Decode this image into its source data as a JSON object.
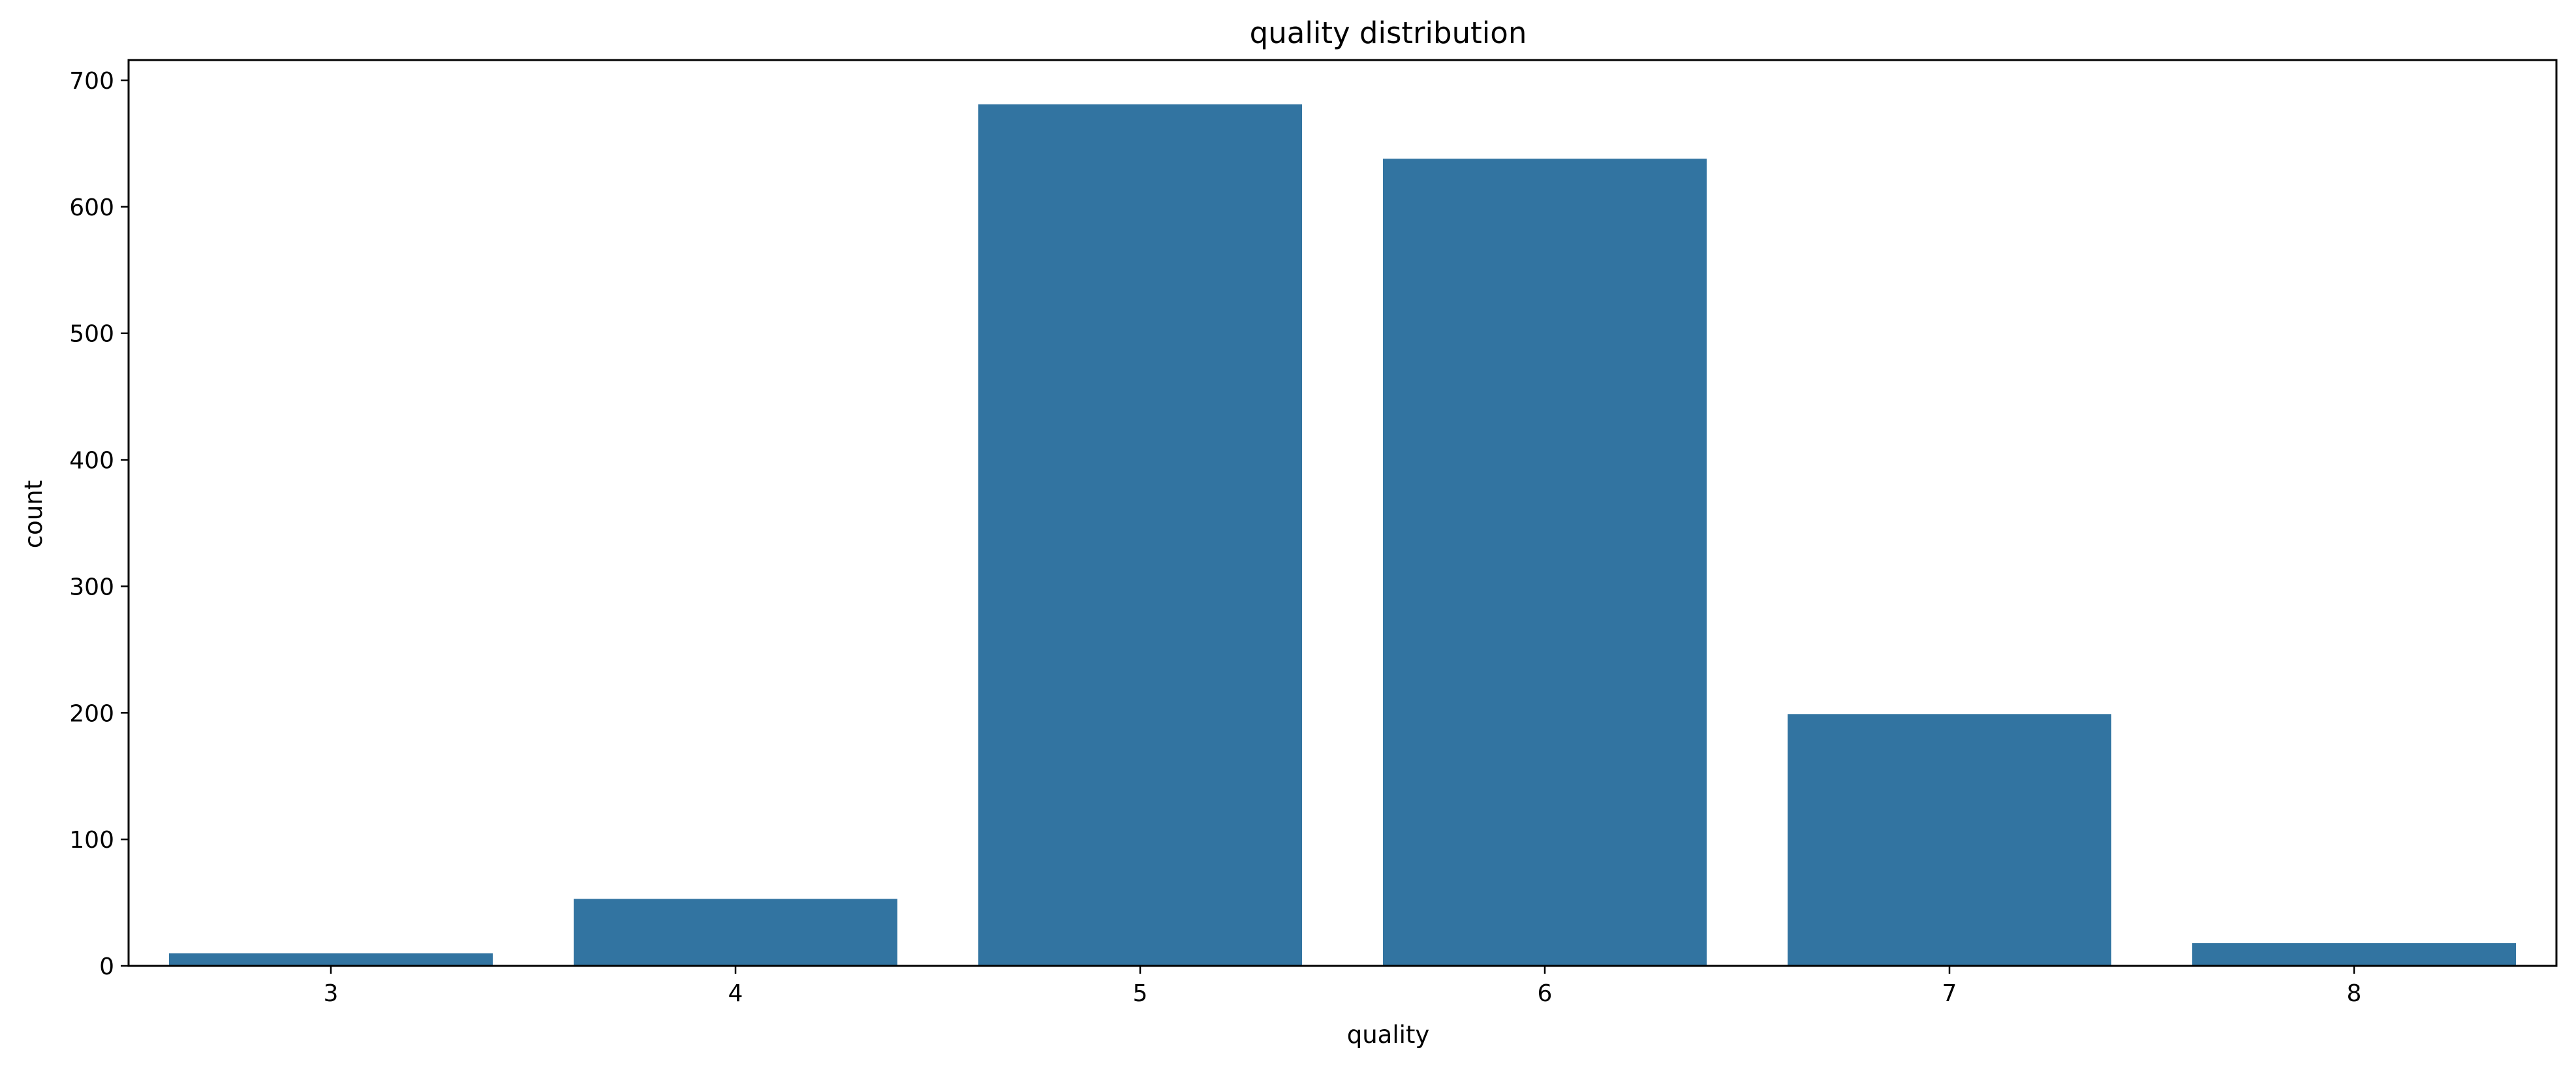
{
  "chart_data": {
    "type": "bar",
    "title": "quality distribution",
    "xlabel": "quality",
    "ylabel": "count",
    "categories": [
      "3",
      "4",
      "5",
      "6",
      "7",
      "8"
    ],
    "values": [
      10,
      53,
      681,
      638,
      199,
      18
    ],
    "ylim": [
      0,
      716
    ],
    "yticks": [
      0,
      100,
      200,
      300,
      400,
      500,
      600,
      700
    ],
    "bar_color": "#3274a1",
    "grid": false,
    "legend": "none"
  }
}
